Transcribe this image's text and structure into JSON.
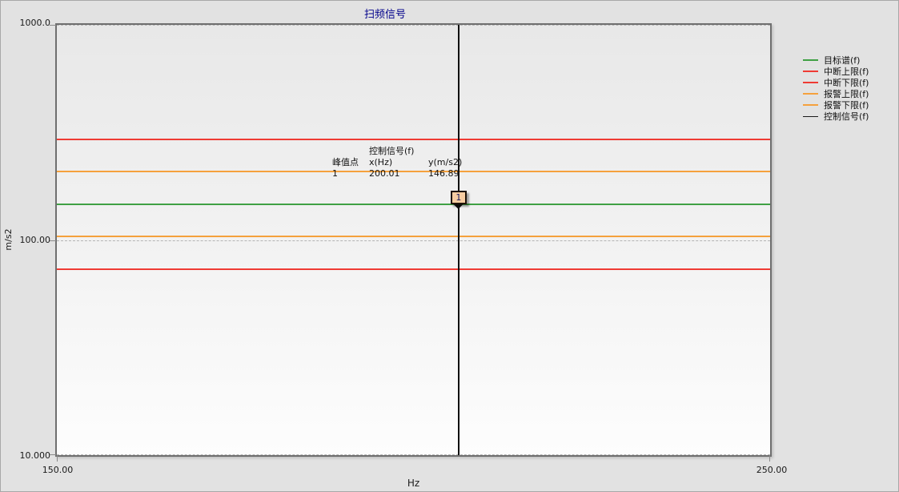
{
  "window": {
    "title": "扫频信号",
    "title_color": "#00008b"
  },
  "axes": {
    "y_title": "m/s2",
    "x_title": "Hz",
    "y_ticks": [
      "1000.0",
      "100.00",
      "10.000"
    ],
    "x_ticks": [
      "150.00",
      "250.00"
    ]
  },
  "legend": [
    {
      "label": "目标谱(f)",
      "color": "#3fa044"
    },
    {
      "label": "中断上限(f)",
      "color": "#ef3b34"
    },
    {
      "label": "中断下限(f)",
      "color": "#ef3b34"
    },
    {
      "label": "报警上限(f)",
      "color": "#f5a13d"
    },
    {
      "label": "报警下限(f)",
      "color": "#f5a13d"
    },
    {
      "label": "控制信号(f)",
      "color": "#1a1a1a"
    }
  ],
  "annotation": {
    "header": "控制信号(f)",
    "columns": [
      "峰值点",
      "x(Hz)",
      "y(m/s2)"
    ],
    "values": [
      "1",
      "200.01",
      "146.89"
    ]
  },
  "peak_marker": {
    "label": "1"
  },
  "chart_data": {
    "type": "line",
    "title": "扫频信号",
    "xlabel": "Hz",
    "ylabel": "m/s2",
    "x_scale": "log",
    "y_scale": "log",
    "xlim": [
      150,
      250
    ],
    "ylim": [
      10,
      1000
    ],
    "x_tick_values": [
      150,
      250
    ],
    "y_tick_values": [
      1000,
      100,
      10
    ],
    "grid": "dashed horizontal at y decades",
    "legend_position": "right",
    "series": [
      {
        "name": "目标谱(f)",
        "type": "hline",
        "value": 146.89,
        "color": "#3fa044"
      },
      {
        "name": "中断上限(f)",
        "type": "hline",
        "value": 293.8,
        "color": "#ef3b34"
      },
      {
        "name": "中断下限(f)",
        "type": "hline",
        "value": 73.4,
        "color": "#ef3b34"
      },
      {
        "name": "报警上限(f)",
        "type": "hline",
        "value": 207.7,
        "color": "#f5a13d"
      },
      {
        "name": "报警下限(f)",
        "type": "hline",
        "value": 103.9,
        "color": "#f5a13d"
      },
      {
        "name": "控制信号(f)",
        "type": "vline",
        "value": 200.01,
        "color": "#111111"
      }
    ],
    "peak": {
      "index": "1",
      "x_hz": 200.01,
      "y_ms2": 146.89
    }
  }
}
